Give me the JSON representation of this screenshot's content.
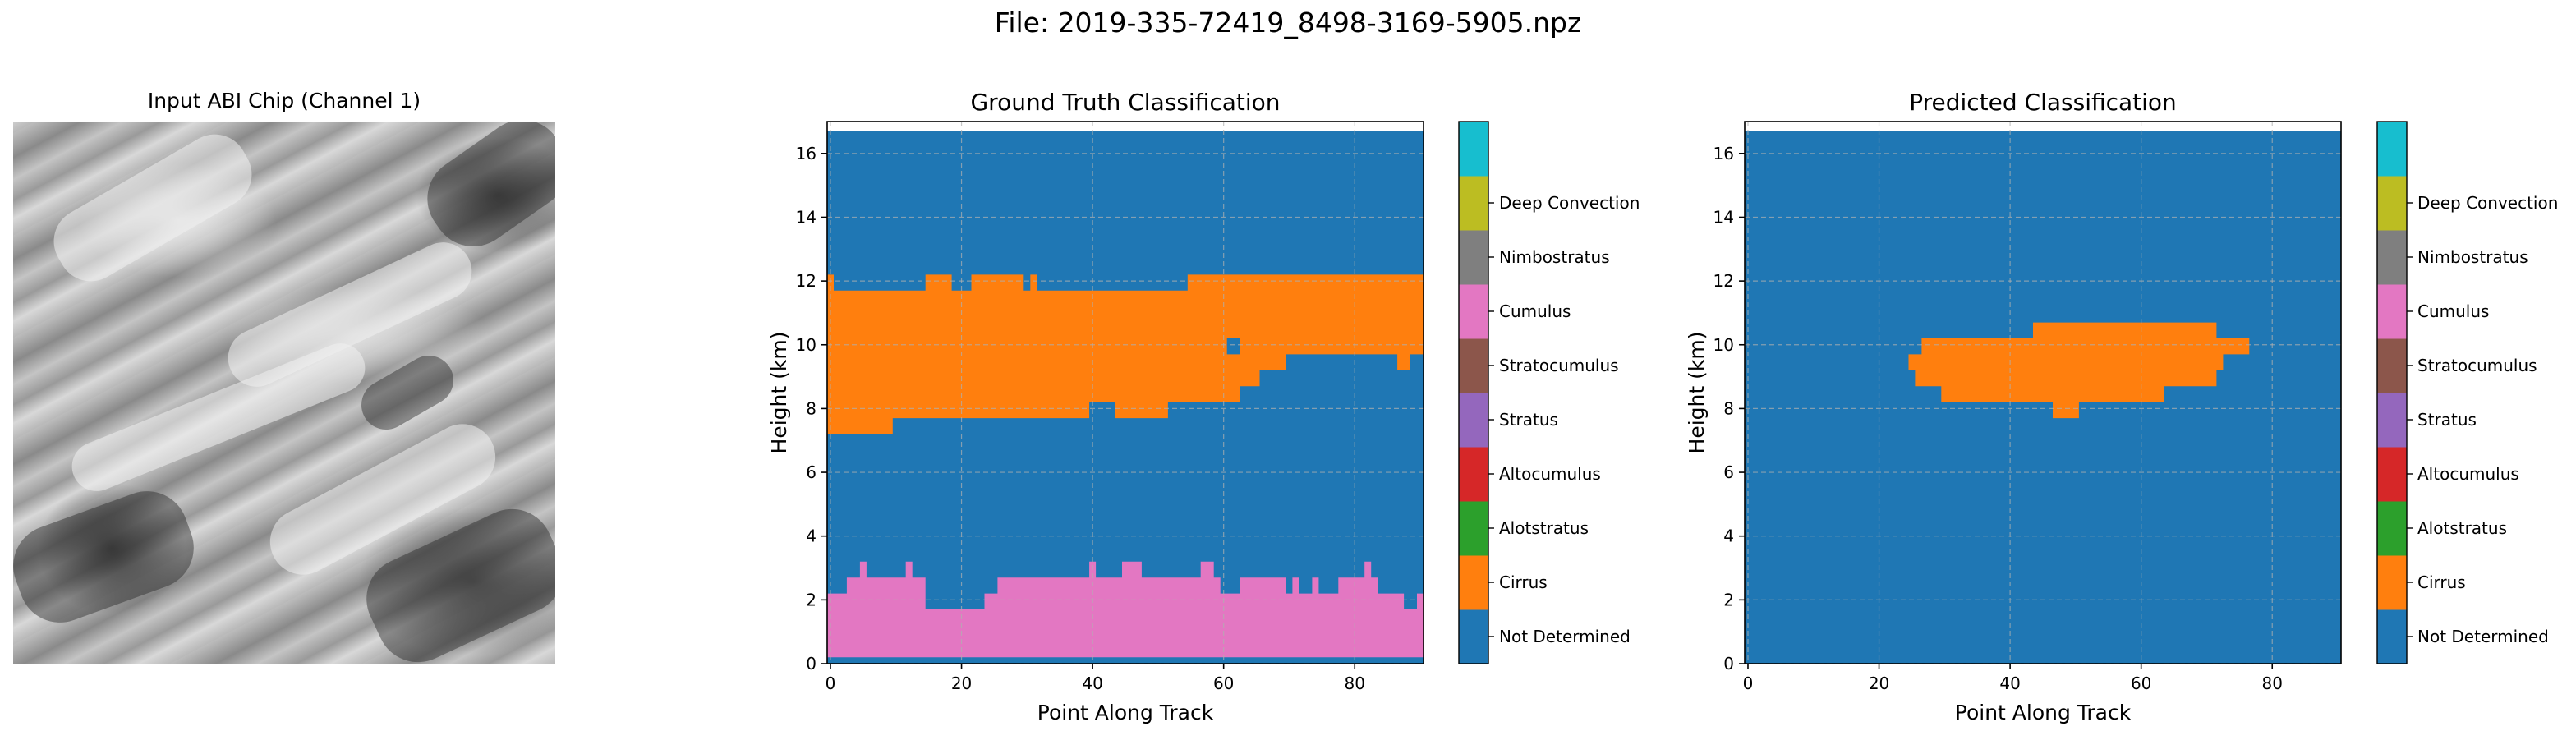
{
  "figure": {
    "title": "File: 2019-335-72419_8498-3169-5905.npz",
    "chip_title": "Input ABI Chip (Channel 1)"
  },
  "chart_data": [
    {
      "type": "heatmap",
      "title": "Ground Truth Classification",
      "xlabel": "Point Along Track",
      "ylabel": "Height (km)",
      "xlim": [
        -0.5,
        90.5
      ],
      "ylim": [
        0,
        17
      ],
      "x_ticks": [
        0,
        20,
        40,
        60,
        80
      ],
      "y_ticks": [
        0,
        2,
        4,
        6,
        8,
        10,
        12,
        14,
        16
      ],
      "grid": true,
      "background_class": 0,
      "height_top": 16.7,
      "regions": [
        {
          "class": 3,
          "x_start": 0,
          "x_end": 90,
          "bottom": 0.2,
          "top": [
            2.2,
            2.2,
            2.2,
            2.7,
            2.7,
            3.2,
            2.7,
            2.7,
            2.7,
            2.7,
            2.7,
            2.7,
            3.2,
            2.7,
            2.7,
            1.7,
            1.7,
            1.7,
            1.7,
            1.7,
            1.7,
            1.7,
            1.7,
            1.7,
            2.2,
            2.2,
            2.7,
            2.7,
            2.7,
            2.7,
            2.7,
            2.7,
            2.7,
            2.7,
            2.7,
            2.7,
            2.7,
            2.7,
            2.7,
            2.7,
            3.2,
            2.7,
            2.7,
            2.7,
            2.7,
            3.2,
            3.2,
            3.2,
            2.7,
            2.7,
            2.7,
            2.7,
            2.7,
            2.7,
            2.7,
            2.7,
            2.7,
            3.2,
            3.2,
            2.7,
            2.2,
            2.2,
            2.2,
            2.7,
            2.7,
            2.7,
            2.7,
            2.7,
            2.7,
            2.7,
            2.2,
            2.7,
            2.2,
            2.2,
            2.7,
            2.2,
            2.2,
            2.2,
            2.7,
            2.7,
            2.7,
            2.7,
            3.2,
            2.7,
            2.2,
            2.2,
            2.2,
            2.2,
            1.7,
            1.7,
            2.2
          ]
        },
        {
          "class": 1,
          "x_start": 0,
          "x_end": 90,
          "bottom": [
            7.2,
            7.2,
            7.2,
            7.2,
            7.2,
            7.2,
            7.2,
            7.2,
            7.2,
            7.2,
            7.7,
            7.7,
            7.7,
            7.7,
            7.7,
            7.7,
            7.7,
            7.7,
            7.7,
            7.7,
            7.7,
            7.7,
            7.7,
            7.7,
            7.7,
            7.7,
            7.7,
            7.7,
            7.7,
            7.7,
            7.7,
            7.7,
            7.7,
            7.7,
            7.7,
            7.7,
            7.7,
            7.7,
            7.7,
            7.7,
            8.2,
            8.2,
            8.2,
            8.2,
            7.7,
            7.7,
            7.7,
            7.7,
            7.7,
            7.7,
            7.7,
            7.7,
            8.2,
            8.2,
            8.2,
            8.2,
            8.2,
            8.2,
            8.2,
            8.2,
            8.2,
            8.2,
            8.2,
            8.7,
            8.7,
            8.7,
            9.2,
            9.2,
            9.2,
            9.2,
            9.7,
            9.7,
            9.7,
            9.7,
            9.7,
            9.7,
            9.7,
            9.7,
            9.7,
            9.7,
            9.7,
            9.7,
            9.7,
            9.7,
            9.7,
            9.7,
            9.7,
            9.2,
            9.2,
            9.7,
            9.7
          ],
          "top": [
            12.2,
            11.7,
            11.7,
            11.7,
            11.7,
            11.7,
            11.7,
            11.7,
            11.7,
            11.7,
            11.7,
            11.7,
            11.7,
            11.7,
            11.7,
            12.2,
            12.2,
            12.2,
            12.2,
            11.7,
            11.7,
            11.7,
            12.2,
            12.2,
            12.2,
            12.2,
            12.2,
            12.2,
            12.2,
            12.2,
            11.7,
            12.2,
            11.7,
            11.7,
            11.7,
            11.7,
            11.7,
            11.7,
            11.7,
            11.7,
            11.7,
            11.7,
            11.7,
            11.7,
            11.7,
            11.7,
            11.7,
            11.7,
            11.7,
            11.7,
            11.7,
            11.7,
            11.7,
            11.7,
            11.7,
            12.2,
            12.2,
            12.2,
            12.2,
            12.2,
            12.2,
            12.2,
            12.2,
            12.2,
            12.2,
            12.2,
            12.2,
            12.2,
            12.2,
            12.2,
            12.2,
            12.2,
            12.2,
            12.2,
            12.2,
            12.2,
            12.2,
            12.2,
            12.2,
            12.2,
            12.2,
            12.2,
            12.2,
            12.2,
            12.2,
            12.2,
            12.2,
            12.2,
            12.2,
            12.2,
            12.2
          ]
        },
        {
          "class": 0,
          "x_start": 61,
          "x_end": 62,
          "bottom": 9.7,
          "top": 10.2
        }
      ]
    },
    {
      "type": "heatmap",
      "title": "Predicted Classification",
      "xlabel": "Point Along Track",
      "ylabel": "Height (km)",
      "xlim": [
        -0.5,
        90.5
      ],
      "ylim": [
        0,
        17
      ],
      "x_ticks": [
        0,
        20,
        40,
        60,
        80
      ],
      "y_ticks": [
        0,
        2,
        4,
        6,
        8,
        10,
        12,
        14,
        16
      ],
      "grid": true,
      "background_class": 0,
      "height_top": 16.7,
      "regions": [
        {
          "class": 1,
          "x_start": 25,
          "x_end": 76,
          "bottom": [
            9.2,
            8.7,
            8.7,
            8.7,
            8.7,
            8.2,
            8.2,
            8.2,
            8.2,
            8.2,
            8.2,
            8.2,
            8.2,
            8.2,
            8.2,
            8.2,
            8.2,
            8.2,
            8.2,
            8.2,
            8.2,
            8.2,
            7.7,
            7.7,
            7.7,
            7.7,
            8.2,
            8.2,
            8.2,
            8.2,
            8.2,
            8.2,
            8.2,
            8.2,
            8.2,
            8.2,
            8.2,
            8.2,
            8.2,
            8.7,
            8.7,
            8.7,
            8.7,
            8.7,
            8.7,
            8.7,
            8.7,
            9.2,
            9.7,
            9.7,
            9.7,
            9.7
          ],
          "top": [
            9.7,
            9.7,
            10.2,
            10.2,
            10.2,
            10.2,
            10.2,
            10.2,
            10.2,
            10.2,
            10.2,
            10.2,
            10.2,
            10.2,
            10.2,
            10.2,
            10.2,
            10.2,
            10.2,
            10.7,
            10.7,
            10.7,
            10.7,
            10.7,
            10.7,
            10.7,
            10.7,
            10.7,
            10.7,
            10.7,
            10.7,
            10.7,
            10.7,
            10.7,
            10.7,
            10.7,
            10.7,
            10.7,
            10.7,
            10.7,
            10.7,
            10.7,
            10.7,
            10.7,
            10.7,
            10.7,
            10.7,
            10.2,
            10.2,
            10.2,
            10.2,
            10.2
          ]
        }
      ]
    }
  ],
  "colorbar": {
    "classes": [
      {
        "label": "Not Determined",
        "color": "#1f77b4"
      },
      {
        "label": "Cirrus",
        "color": "#ff7f0e"
      },
      {
        "label": "Alotstratus",
        "color": "#2ca02c"
      },
      {
        "label": "Altocumulus",
        "color": "#d62728"
      },
      {
        "label": "Stratus",
        "color": "#9467bd"
      },
      {
        "label": "Stratocumulus",
        "color": "#8c564b"
      },
      {
        "label": "Cumulus",
        "color": "#e377c2"
      },
      {
        "label": "Nimbostratus",
        "color": "#7f7f7f"
      },
      {
        "label": "Deep Convection",
        "color": "#bcbd22"
      },
      {
        "label": "",
        "color": "#17becf"
      }
    ]
  }
}
